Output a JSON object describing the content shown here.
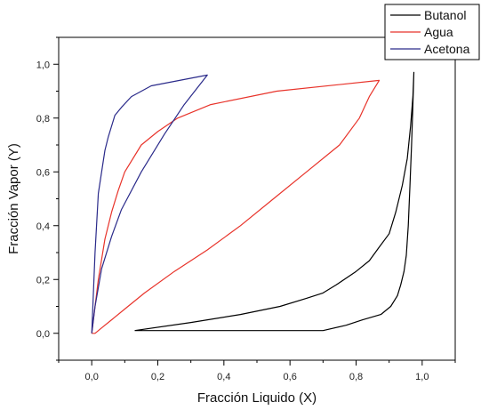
{
  "chart_data": {
    "type": "line",
    "title": "",
    "xlabel": "Fracción Liquido (X)",
    "ylabel": "Fracción Vapor (Y)",
    "xlim": [
      -0.1,
      1.1
    ],
    "ylim": [
      -0.1,
      1.1
    ],
    "xticks": [
      0.0,
      0.2,
      0.4,
      0.6,
      0.8,
      1.0
    ],
    "xtick_labels": [
      "0,0",
      "0,2",
      "0,4",
      "0,6",
      "0,8",
      "1,0"
    ],
    "yticks": [
      0.0,
      0.2,
      0.4,
      0.6,
      0.8,
      1.0
    ],
    "ytick_labels": [
      "0,0",
      "0,2",
      "0,4",
      "0,6",
      "0,8",
      "1,0"
    ],
    "grid": false,
    "legend_position": "top-right",
    "series": [
      {
        "name": "Butanol",
        "color": "#000000",
        "points": [
          [
            0.13,
            0.01
          ],
          [
            0.3,
            0.04
          ],
          [
            0.45,
            0.07
          ],
          [
            0.57,
            0.1
          ],
          [
            0.65,
            0.13
          ],
          [
            0.7,
            0.15
          ],
          [
            0.74,
            0.18
          ],
          [
            0.8,
            0.23
          ],
          [
            0.84,
            0.27
          ],
          [
            0.87,
            0.32
          ],
          [
            0.9,
            0.37
          ],
          [
            0.92,
            0.45
          ],
          [
            0.94,
            0.55
          ],
          [
            0.955,
            0.65
          ],
          [
            0.965,
            0.77
          ],
          [
            0.972,
            0.88
          ],
          [
            0.975,
            0.97
          ],
          [
            0.972,
            0.85
          ],
          [
            0.968,
            0.7
          ],
          [
            0.963,
            0.55
          ],
          [
            0.958,
            0.4
          ],
          [
            0.952,
            0.29
          ],
          [
            0.945,
            0.23
          ],
          [
            0.935,
            0.18
          ],
          [
            0.925,
            0.14
          ],
          [
            0.905,
            0.1
          ],
          [
            0.875,
            0.07
          ],
          [
            0.82,
            0.05
          ],
          [
            0.77,
            0.03
          ],
          [
            0.7,
            0.01
          ],
          [
            0.63,
            0.01
          ],
          [
            0.13,
            0.01
          ]
        ]
      },
      {
        "name": "Agua",
        "color": "#e8332a",
        "points": [
          [
            0.0,
            0.0
          ],
          [
            0.02,
            0.2
          ],
          [
            0.04,
            0.35
          ],
          [
            0.06,
            0.45
          ],
          [
            0.08,
            0.53
          ],
          [
            0.1,
            0.6
          ],
          [
            0.15,
            0.7
          ],
          [
            0.2,
            0.75
          ],
          [
            0.26,
            0.8
          ],
          [
            0.36,
            0.85
          ],
          [
            0.56,
            0.9
          ],
          [
            0.87,
            0.94
          ],
          [
            0.84,
            0.88
          ],
          [
            0.81,
            0.8
          ],
          [
            0.75,
            0.7
          ],
          [
            0.65,
            0.6
          ],
          [
            0.55,
            0.5
          ],
          [
            0.45,
            0.4
          ],
          [
            0.35,
            0.31
          ],
          [
            0.25,
            0.23
          ],
          [
            0.16,
            0.15
          ],
          [
            0.1,
            0.09
          ],
          [
            0.06,
            0.05
          ],
          [
            0.03,
            0.02
          ],
          [
            0.01,
            0.0
          ],
          [
            0.0,
            0.0
          ]
        ]
      },
      {
        "name": "Acetona",
        "color": "#2a2a8a",
        "points": [
          [
            0.0,
            0.0
          ],
          [
            0.01,
            0.3
          ],
          [
            0.02,
            0.52
          ],
          [
            0.04,
            0.68
          ],
          [
            0.05,
            0.73
          ],
          [
            0.07,
            0.81
          ],
          [
            0.09,
            0.84
          ],
          [
            0.12,
            0.88
          ],
          [
            0.18,
            0.92
          ],
          [
            0.35,
            0.96
          ],
          [
            0.28,
            0.85
          ],
          [
            0.22,
            0.74
          ],
          [
            0.15,
            0.6
          ],
          [
            0.09,
            0.46
          ],
          [
            0.06,
            0.36
          ],
          [
            0.03,
            0.24
          ],
          [
            0.01,
            0.1
          ],
          [
            0.0,
            0.0
          ]
        ]
      }
    ]
  }
}
